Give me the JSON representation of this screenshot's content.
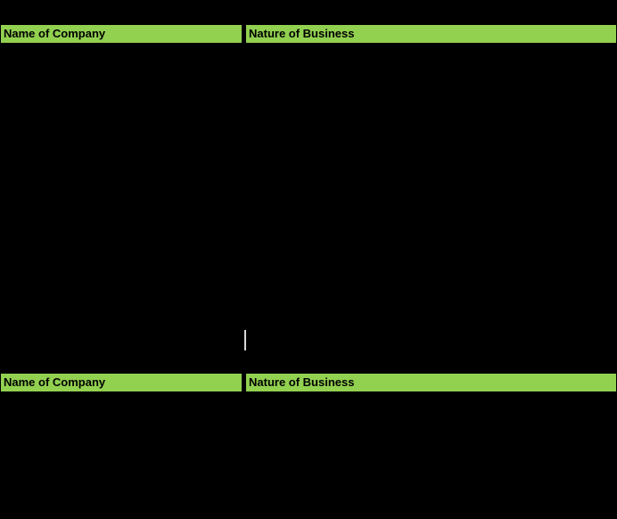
{
  "colors": {
    "background": "#000000",
    "header_fill": "#92d050",
    "header_text": "#000000",
    "cursor": "#d9d9d9"
  },
  "header_rows": [
    {
      "cells": [
        {
          "label": "Name of Company"
        },
        {
          "label": "Nature of Business"
        }
      ]
    },
    {
      "cells": [
        {
          "label": "Name of Company"
        },
        {
          "label": "Nature of Business"
        }
      ]
    }
  ],
  "cursor": {
    "present": true
  }
}
